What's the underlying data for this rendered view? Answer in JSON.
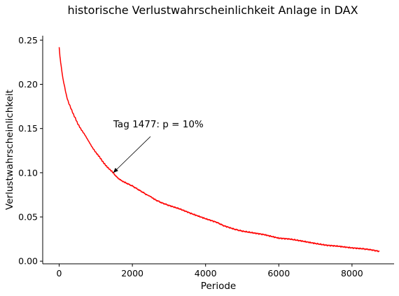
{
  "chart_data": {
    "type": "line",
    "title": "historische Verlustwahrscheinlichkeit Anlage in DAX",
    "xlabel": "Periode",
    "ylabel": "Verlustwahrscheinlichkeit",
    "xlim": [
      -450,
      9150
    ],
    "ylim": [
      -0.003,
      0.255
    ],
    "xticks": [
      0,
      2000,
      4000,
      6000,
      8000
    ],
    "xtick_labels": [
      "0",
      "2000",
      "4000",
      "6000",
      "8000"
    ],
    "yticks": [
      0.0,
      0.05,
      0.1,
      0.15,
      0.2,
      0.25
    ],
    "ytick_labels": [
      "0.00",
      "0.05",
      "0.10",
      "0.15",
      "0.20",
      "0.25"
    ],
    "grid": false,
    "spines": [
      "left",
      "bottom"
    ],
    "line_color": "#ff0000",
    "series": [
      {
        "x": [
          0,
          20,
          50,
          100,
          150,
          200,
          250,
          300,
          350,
          400,
          450,
          500,
          600,
          700,
          800,
          900,
          1000,
          1100,
          1200,
          1300,
          1400,
          1477,
          1550,
          1700,
          1800,
          2000,
          2200,
          2400,
          2500,
          2600,
          2800,
          3000,
          3300,
          3600,
          4000,
          4300,
          4500,
          4800,
          5000,
          5300,
          5600,
          6000,
          6300,
          6600,
          7000,
          7300,
          7600,
          8000,
          8300,
          8500,
          8750
        ],
        "y": [
          0.242,
          0.232,
          0.222,
          0.207,
          0.197,
          0.187,
          0.18,
          0.175,
          0.17,
          0.165,
          0.161,
          0.156,
          0.149,
          0.143,
          0.136,
          0.129,
          0.123,
          0.118,
          0.112,
          0.107,
          0.103,
          0.1,
          0.096,
          0.091,
          0.089,
          0.085,
          0.08,
          0.075,
          0.073,
          0.07,
          0.066,
          0.063,
          0.059,
          0.054,
          0.048,
          0.044,
          0.04,
          0.036,
          0.034,
          0.032,
          0.03,
          0.026,
          0.025,
          0.023,
          0.02,
          0.018,
          0.017,
          0.015,
          0.014,
          0.013,
          0.011
        ]
      }
    ],
    "annotation": {
      "text": "Tag 1477: p = 10%",
      "x": 1477,
      "y": 0.1,
      "text_x": 1480,
      "text_y": 0.148
    }
  }
}
